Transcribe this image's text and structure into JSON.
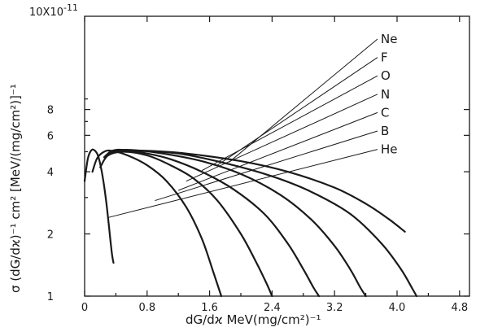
{
  "chart_data": {
    "type": "line",
    "y_multiplier": "10X10",
    "y_multiplier_exp": "-11",
    "xlabel": "dǤ/dϰ  MeV(mg/cm²)⁻¹",
    "ylabel": "σ (dǤ/dϰ)⁻¹   cm² [MeV/(mg/cm²)]⁻¹",
    "x_ticks": [
      "0",
      "0.8",
      "1.6",
      "2.4",
      "3.2",
      "4.0",
      "4.8"
    ],
    "y_ticks": [
      "1",
      "2",
      "4",
      "6",
      "8"
    ],
    "xlim": [
      0,
      4.8
    ],
    "ylim": [
      1,
      10
    ],
    "y_scale": "log",
    "grid": false,
    "series": [
      {
        "name": "He",
        "x": [
          0.0,
          0.04,
          0.08,
          0.12,
          0.17,
          0.22,
          0.27,
          0.31,
          0.35,
          0.37
        ],
        "y": [
          3.6,
          4.6,
          5.05,
          5.1,
          4.8,
          4.0,
          3.0,
          2.2,
          1.6,
          1.45
        ],
        "label_pos": [
          0.3,
          2.4
        ]
      },
      {
        "name": "B",
        "x": [
          0.1,
          0.16,
          0.25,
          0.35,
          0.55,
          0.8,
          1.05,
          1.3,
          1.5,
          1.65,
          1.75
        ],
        "y": [
          4.0,
          4.65,
          5.0,
          5.05,
          4.8,
          4.3,
          3.6,
          2.7,
          1.9,
          1.3,
          1.0
        ],
        "label_pos": [
          0.9,
          2.9
        ]
      },
      {
        "name": "C",
        "x": [
          0.2,
          0.3,
          0.5,
          0.8,
          1.1,
          1.4,
          1.7,
          2.0,
          2.2,
          2.33,
          2.4
        ],
        "y": [
          4.2,
          4.8,
          5.0,
          4.8,
          4.3,
          3.7,
          2.9,
          2.0,
          1.45,
          1.15,
          1.0
        ],
        "label_pos": [
          1.2,
          3.25
        ]
      },
      {
        "name": "N",
        "x": [
          0.25,
          0.35,
          0.5,
          0.8,
          1.1,
          1.5,
          1.9,
          2.3,
          2.6,
          2.8,
          2.93,
          3.0
        ],
        "y": [
          4.7,
          5.05,
          5.1,
          4.9,
          4.6,
          4.0,
          3.3,
          2.5,
          1.8,
          1.35,
          1.1,
          1.0
        ],
        "label_pos": [
          1.3,
          3.6
        ]
      },
      {
        "name": "O",
        "x": [
          0.3,
          0.4,
          0.6,
          1.0,
          1.5,
          2.0,
          2.5,
          2.9,
          3.2,
          3.4,
          3.53,
          3.6
        ],
        "y": [
          4.8,
          5.05,
          5.1,
          4.9,
          4.5,
          3.9,
          3.1,
          2.35,
          1.75,
          1.35,
          1.1,
          1.0
        ],
        "label_pos": [
          1.5,
          4.05
        ]
      },
      {
        "name": "F",
        "x": [
          0.33,
          0.45,
          0.7,
          1.2,
          1.8,
          2.4,
          2.9,
          3.4,
          3.8,
          4.05,
          4.2,
          4.25
        ],
        "y": [
          4.9,
          5.05,
          5.05,
          4.9,
          4.4,
          3.8,
          3.2,
          2.5,
          1.8,
          1.35,
          1.08,
          1.0
        ],
        "label_pos": [
          1.7,
          4.3
        ]
      },
      {
        "name": "Ne",
        "x": [
          0.36,
          0.5,
          0.8,
          1.3,
          2.0,
          2.6,
          3.2,
          3.6,
          3.9,
          4.1
        ],
        "y": [
          4.95,
          5.05,
          5.05,
          4.9,
          4.5,
          4.0,
          3.35,
          2.8,
          2.35,
          2.05
        ],
        "label_pos": [
          1.85,
          4.45
        ]
      }
    ]
  }
}
